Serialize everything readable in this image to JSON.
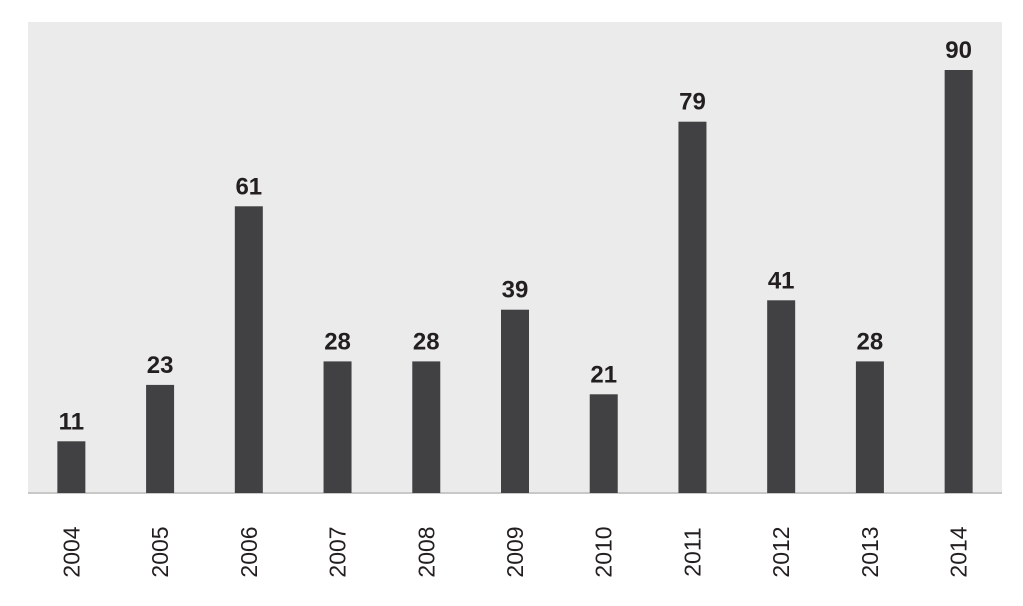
{
  "chart_data": {
    "type": "bar",
    "categories": [
      "2004",
      "2005",
      "2006",
      "2007",
      "2008",
      "2009",
      "2010",
      "2011",
      "2012",
      "2013",
      "2014"
    ],
    "values": [
      11,
      23,
      61,
      28,
      28,
      39,
      21,
      79,
      41,
      28,
      90
    ],
    "color": "#414042"
  }
}
